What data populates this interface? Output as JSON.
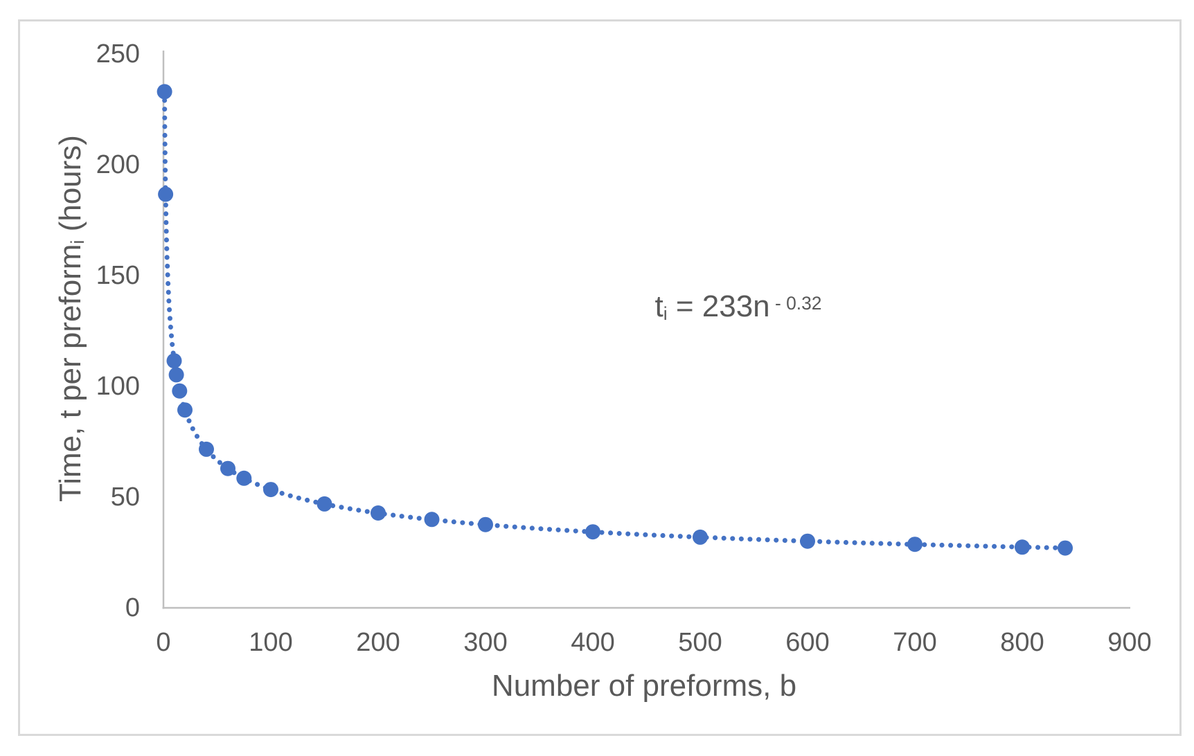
{
  "chart_data": {
    "type": "scatter",
    "title": "",
    "xlabel": "Number of preforms, b",
    "ylabel": "Time, t per preform i (hours)",
    "ylabel_parts": {
      "pre": "Time, t per preform",
      "sub": "i",
      "post": " (hours)"
    },
    "annotation_text": "t i = 233n - 0.32",
    "annotation_parts": {
      "pre": "t",
      "sub": "i",
      "mid": " = 233n",
      "sup": " - 0.32"
    },
    "x": [
      1,
      2,
      10,
      12,
      15,
      20,
      40,
      60,
      75,
      100,
      150,
      200,
      250,
      300,
      400,
      500,
      600,
      700,
      800,
      840
    ],
    "y": [
      233,
      186.7,
      111.5,
      105.2,
      97.9,
      89.3,
      71.6,
      62.9,
      58.5,
      53.4,
      46.9,
      42.8,
      39.9,
      37.6,
      34.3,
      31.9,
      30.1,
      28.7,
      27.4,
      27.0
    ],
    "xlim": [
      0,
      900
    ],
    "ylim": [
      0,
      250
    ],
    "x_ticks": [
      0,
      100,
      200,
      300,
      400,
      500,
      600,
      700,
      800,
      900
    ],
    "y_ticks": [
      0,
      50,
      100,
      150,
      200,
      250
    ],
    "grid": false,
    "legend": false,
    "trendline": {
      "kind": "power",
      "coefficient": 233,
      "exponent": -0.32,
      "range": [
        1,
        840
      ],
      "style": "dotted"
    }
  },
  "colors": {
    "accent_blue": "#4472C4",
    "axis_line": "#BFBFBF",
    "text_gray": "#595959",
    "frame_border": "#D9D9D9",
    "background": "#FFFFFF"
  }
}
